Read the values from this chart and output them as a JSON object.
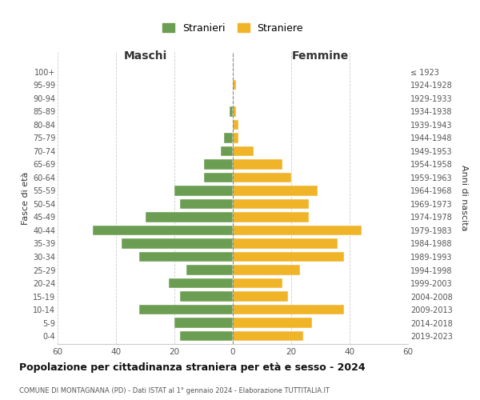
{
  "age_groups": [
    "0-4",
    "5-9",
    "10-14",
    "15-19",
    "20-24",
    "25-29",
    "30-34",
    "35-39",
    "40-44",
    "45-49",
    "50-54",
    "55-59",
    "60-64",
    "65-69",
    "70-74",
    "75-79",
    "80-84",
    "85-89",
    "90-94",
    "95-99",
    "100+"
  ],
  "birth_years": [
    "2019-2023",
    "2014-2018",
    "2009-2013",
    "2004-2008",
    "1999-2003",
    "1994-1998",
    "1989-1993",
    "1984-1988",
    "1979-1983",
    "1974-1978",
    "1969-1973",
    "1964-1968",
    "1959-1963",
    "1954-1958",
    "1949-1953",
    "1944-1948",
    "1939-1943",
    "1934-1938",
    "1929-1933",
    "1924-1928",
    "≤ 1923"
  ],
  "maschi": [
    18,
    20,
    32,
    18,
    22,
    16,
    32,
    38,
    48,
    30,
    18,
    20,
    10,
    10,
    4,
    3,
    0,
    1,
    0,
    0,
    0
  ],
  "femmine": [
    24,
    27,
    38,
    19,
    17,
    23,
    38,
    36,
    44,
    26,
    26,
    29,
    20,
    17,
    7,
    2,
    2,
    1,
    0,
    1,
    0
  ],
  "color_maschi": "#6b9e52",
  "color_femmine": "#f0b429",
  "xlim": 60,
  "title": "Popolazione per cittadinanza straniera per età e sesso - 2024",
  "subtitle": "COMUNE DI MONTAGNANA (PD) - Dati ISTAT al 1° gennaio 2024 - Elaborazione TUTTITALIA.IT",
  "legend_maschi": "Stranieri",
  "legend_femmine": "Straniere",
  "xlabel_left": "Maschi",
  "xlabel_right": "Femmine",
  "ylabel_left": "Fasce di età",
  "ylabel_right": "Anni di nascita",
  "background_color": "#ffffff",
  "bar_height": 0.75,
  "grid_color": "#cccccc",
  "spine_color": "#cccccc",
  "tick_color": "#555555",
  "label_color": "#333333"
}
